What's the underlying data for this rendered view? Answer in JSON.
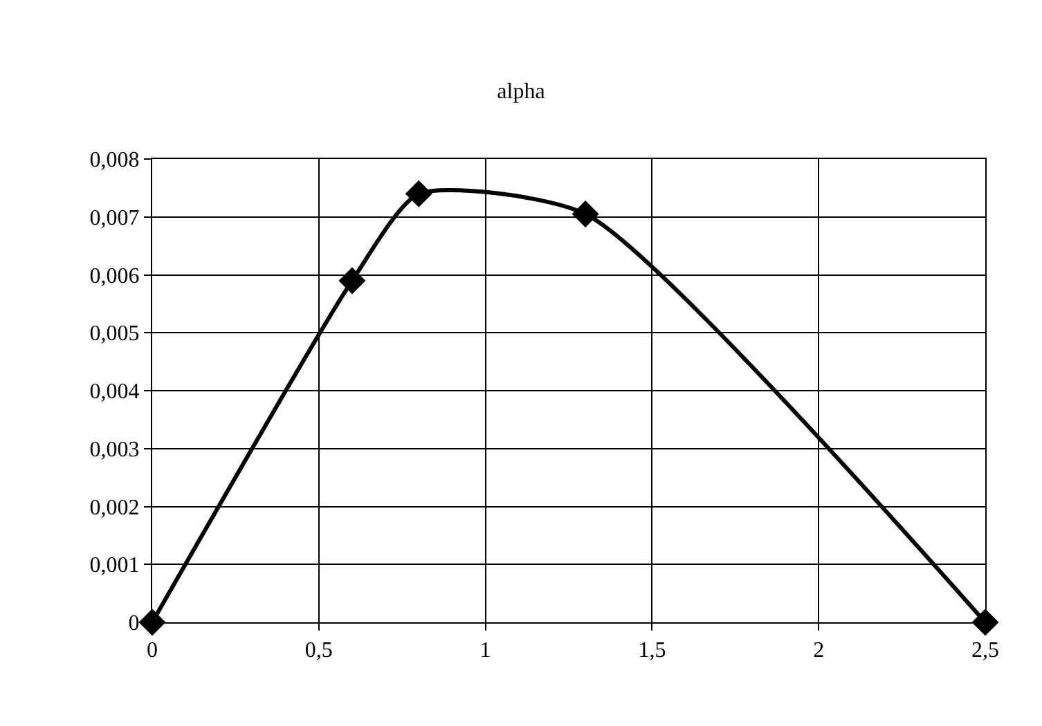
{
  "chart_data": {
    "type": "line",
    "title": "alpha",
    "x": [
      0,
      0.6,
      0.8,
      1.3,
      2.5
    ],
    "series": [
      {
        "color": "#000000",
        "values": [
          0,
          0.0059,
          0.0074,
          0.00705,
          0
        ]
      }
    ],
    "xlim": [
      0,
      2.5
    ],
    "xticks": [
      0,
      {
        "value": 0.5,
        "label": "0,5"
      },
      1,
      {
        "value": 1.5,
        "label": "1,5"
      },
      2,
      {
        "value": 2.5,
        "label": "2,5"
      }
    ],
    "ylim": [
      0,
      0.008
    ],
    "yticks": [
      0,
      {
        "value": 0.001,
        "label": "0,001"
      },
      {
        "value": 0.002,
        "label": "0,002"
      },
      {
        "value": 0.003,
        "label": "0,003"
      },
      {
        "value": 0.004,
        "label": "0,004"
      },
      {
        "value": 0.005,
        "label": "0,005"
      },
      {
        "value": 0.006,
        "label": "0,006"
      },
      {
        "value": 0.007,
        "label": "0,007"
      },
      {
        "value": 0.008,
        "label": "0,008"
      }
    ],
    "grid": true,
    "marker": "diamond",
    "line_style": "solid"
  }
}
